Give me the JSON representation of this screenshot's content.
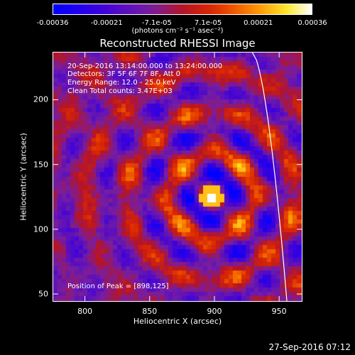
{
  "colorbar": {
    "tick_labels": [
      "-0.00036",
      "-0.00021",
      "-7.1e-05",
      "7.1e-05",
      "0.00021",
      "0.00036"
    ],
    "tick_values": [
      -0.00036,
      -0.00021,
      -7.1e-05,
      7.1e-05,
      0.00021,
      0.00036
    ],
    "units": "(photons cm⁻² s⁻¹ asec⁻²)"
  },
  "info": {
    "time_range": "20-Sep-2016 13:14:00.000 to 13:24:00.000",
    "detectors": "Detectors: 3F 5F 6F 7F 8F, Att 0",
    "energy": "Energy Range: 12.0 - 25.0 keV",
    "algorithm": "Clean     Total counts: 3.47E+03",
    "peak": "Position of Peak = [898,125]"
  },
  "timestamp": "27-Sep-2016 07:12",
  "chart_data": {
    "type": "heatmap",
    "title": "Reconstructed RHESSI Image",
    "xlabel": "Heliocentric X (arcsec)",
    "ylabel": "Heliocentric Y (arcsec)",
    "xlim": [
      775,
      968
    ],
    "ylim": [
      44,
      237
    ],
    "x_ticks": [
      800,
      850,
      900,
      950
    ],
    "y_ticks": [
      50,
      100,
      150,
      200
    ],
    "clim": [
      -0.00036,
      0.00036
    ],
    "colormap": "blue-purple-red-yellow-white",
    "peak": {
      "x": 898,
      "y": 125
    },
    "limb": "white solar limb arc crossing from top-right toward bottom-right",
    "grid": false
  }
}
